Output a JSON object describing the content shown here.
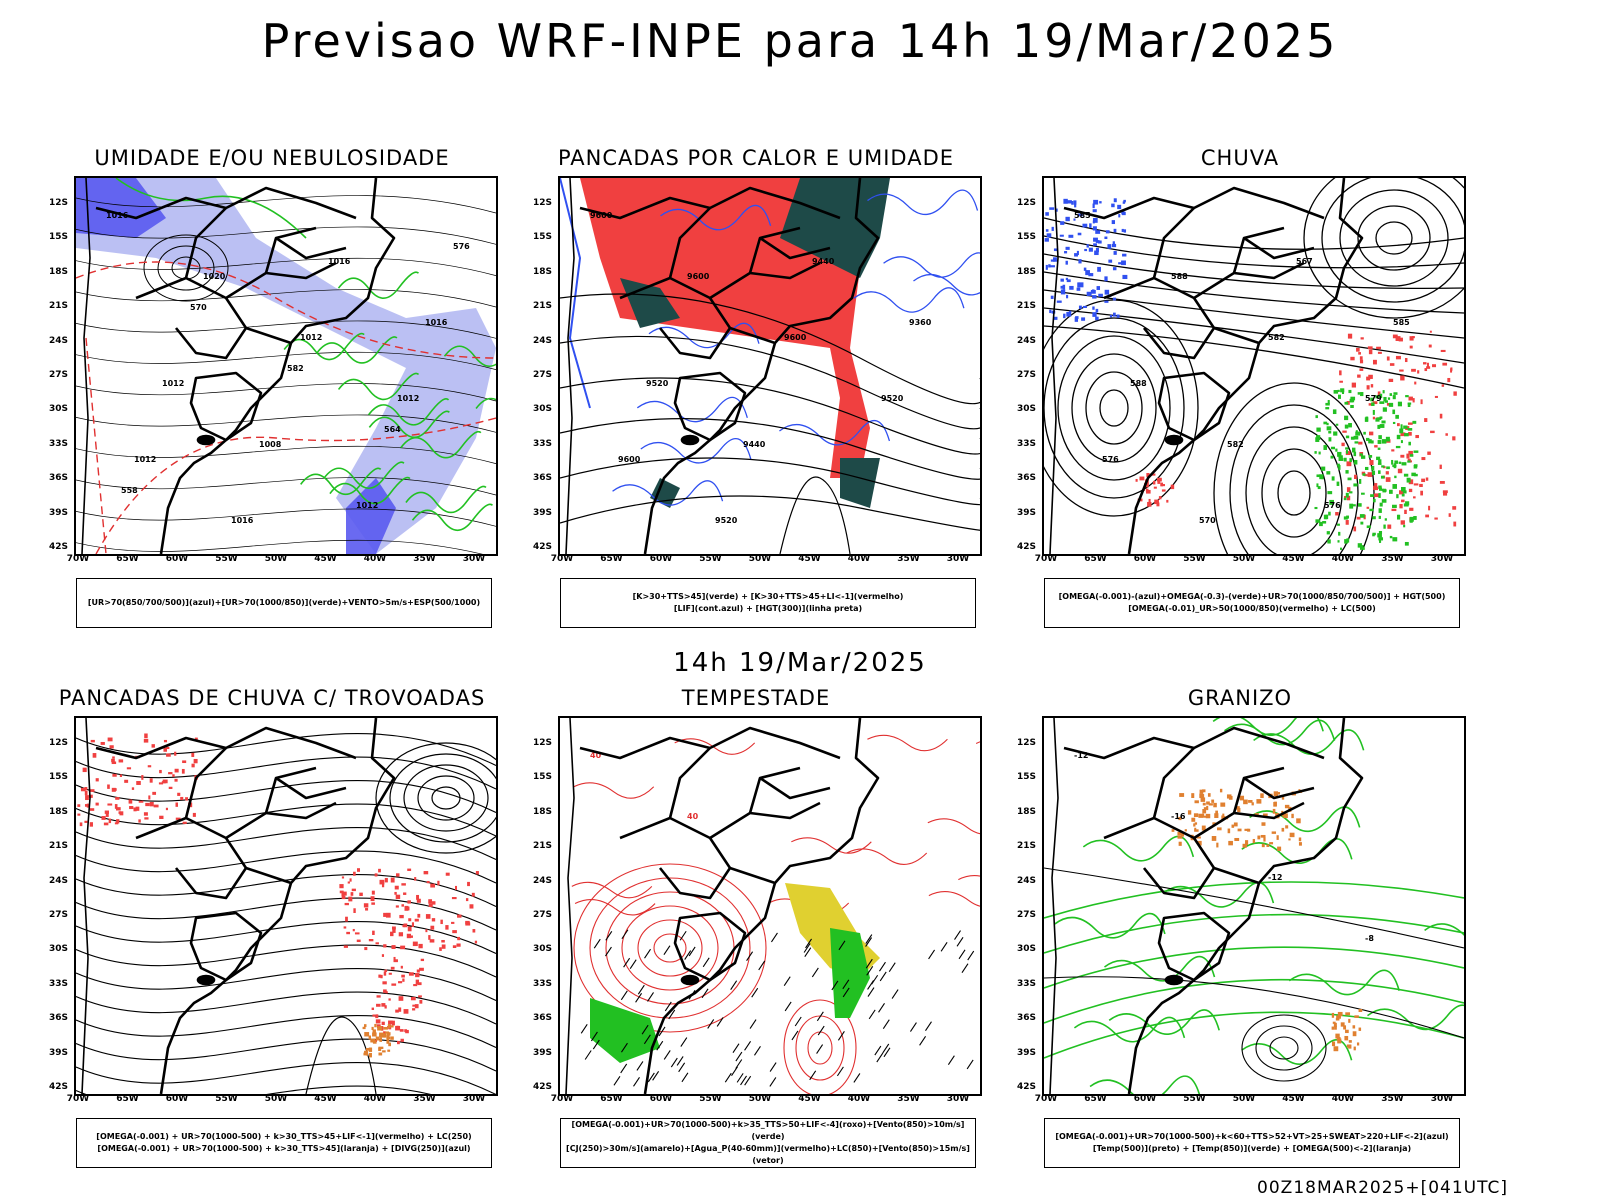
{
  "header": {
    "title": "Previsao WRF-INPE  para 14h 19/Mar/2025"
  },
  "middle": {
    "title": "14h 19/Mar/2025"
  },
  "footer": {
    "stamp": "00Z18MAR2025+[041UTC]"
  },
  "axes": {
    "lat_labels": [
      "12S",
      "15S",
      "18S",
      "21S",
      "24S",
      "27S",
      "30S",
      "33S",
      "36S",
      "39S",
      "42S"
    ],
    "lon_labels": [
      "70W",
      "65W",
      "60W",
      "55W",
      "50W",
      "45W",
      "40W",
      "35W",
      "30W"
    ]
  },
  "colors": {
    "humidity_blue": "#5a5af0",
    "humidity_light": "#aab0f0",
    "green": "#22c022",
    "red": "#f04040",
    "dark_teal": "#1e4a48",
    "yellow": "#e0d030",
    "orange": "#e08030",
    "contour_red": "#e03030",
    "contour_blue": "#3050f0"
  },
  "panels": [
    {
      "id": "umidade",
      "title": "UMIDADE E/OU NEBULOSIDADE",
      "legend": [
        "[UR>70(850/700/500)](azul)+[UR>70(1000/850)](verde)+VENTO>5m/s+ESP(500/1000)"
      ],
      "labels": [
        "1016",
        "1020",
        "1012",
        "1012",
        "1012",
        "1016",
        "1016",
        "1016",
        "1012",
        "1008",
        "1012",
        "576",
        "570",
        "582",
        "564",
        "558"
      ]
    },
    {
      "id": "pancadas-calor",
      "title": "PANCADAS POR CALOR E UMIDADE",
      "legend": [
        "[K>30+TTS>45](verde) + [K>30+TTS>45+LI<-1](vermelho)",
        "[LIF](cont.azul) + [HGT(300)](linha preta)"
      ],
      "labels": [
        "9600",
        "9600",
        "9600",
        "9520",
        "9600",
        "9520",
        "9440",
        "9360",
        "9520",
        "9440"
      ]
    },
    {
      "id": "chuva",
      "title": "CHUVA",
      "legend": [
        "[OMEGA(-0.001)-(azul)+OMEGA(-0.3)-(verde)+UR>70(1000/850/700/500)] + HGT(500)",
        "[OMEGA(-0.01)_UR>50(1000/850)(vermelho) + LC(500)"
      ],
      "labels": [
        "585",
        "588",
        "582",
        "579",
        "576",
        "570",
        "567",
        "585",
        "588",
        "582",
        "576"
      ]
    },
    {
      "id": "pancadas-trovoadas",
      "title": "PANCADAS DE CHUVA C/ TROVOADAS",
      "legend": [
        "[OMEGA(-0.001) + UR>70(1000-500) + k>30_TTS>45+LIF<-1](vermelho) + LC(250)",
        "[OMEGA(-0.001) + UR>70(1000-500) + k>30_TTS>45](laranja) + [DIVG(250)](azul)"
      ],
      "labels": []
    },
    {
      "id": "tempestade",
      "title": "TEMPESTADE",
      "legend": [
        "[OMEGA(-0.001)+UR>70(1000-500)+k>35_TTS>50+LIF<-4](roxo)+[Vento(850)>10m/s](verde)",
        "[CJ(250)>30m/s](amarelo)+[Agua_P(40-60mm)](vermelho)+LC(850)+[Vento(850)>15m/s](vetor)"
      ],
      "labels": [
        "40",
        "40"
      ]
    },
    {
      "id": "granizo",
      "title": "GRANIZO",
      "legend": [
        "[OMEGA(-0.001)+UR>70(1000-500)+k<60+TTS>52+VT>25+SWEAT>220+LIF<-2](azul)",
        "[Temp(500)](preto) + [Temp(850)](verde) + [OMEGA(500)<-2](laranja)"
      ],
      "labels": [
        "-12",
        "-16",
        "-12",
        "-8"
      ]
    }
  ]
}
